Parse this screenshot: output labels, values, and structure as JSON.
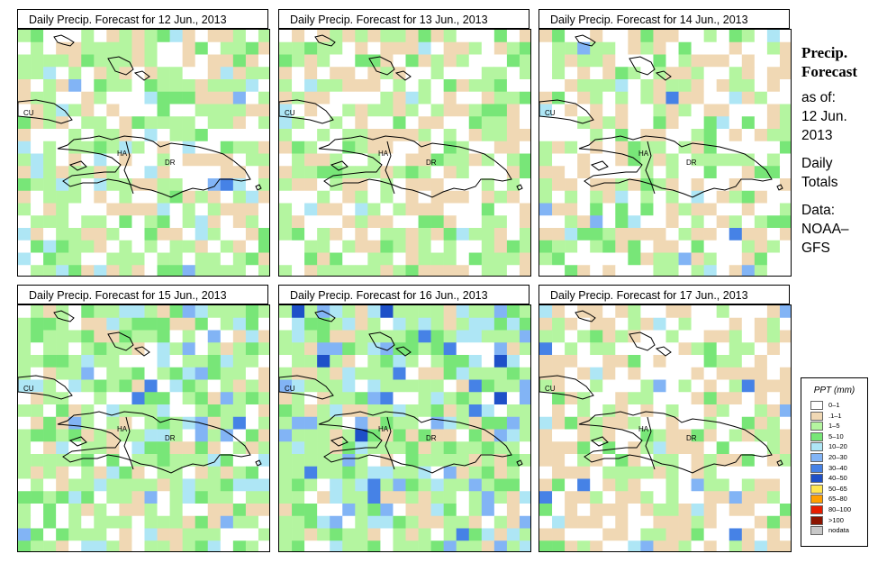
{
  "panels": [
    {
      "title": "Daily Precip. Forecast for  12 Jun., 2013"
    },
    {
      "title": "Daily Precip. Forecast for  13 Jun., 2013"
    },
    {
      "title": "Daily Precip. Forecast for  14 Jun., 2013"
    },
    {
      "title": "Daily Precip. Forecast for  15 Jun., 2013"
    },
    {
      "title": "Daily Precip. Forecast for  16 Jun., 2013"
    },
    {
      "title": "Daily Precip. Forecast for  17 Jun., 2013"
    }
  ],
  "map_labels": {
    "cuba": "CU",
    "haiti": "HA",
    "dominican_republic": "DR"
  },
  "side": {
    "title1": "Precip.",
    "title2": "Forecast",
    "asof": "as of:",
    "date1": "12 Jun.",
    "date2": "2013",
    "daily1": "Daily",
    "daily2": "Totals",
    "data1": "Data:",
    "data2": "NOAA–",
    "data3": "GFS"
  },
  "legend": {
    "title": "PPT (mm)",
    "items": [
      {
        "label": "0–1",
        "color": "#ffffff"
      },
      {
        "label": ".1–1",
        "color": "#f0d8b4"
      },
      {
        "label": "1–5",
        "color": "#b4f5a0"
      },
      {
        "label": "5–10",
        "color": "#78e678"
      },
      {
        "label": "10–20",
        "color": "#aee6f5"
      },
      {
        "label": "20–30",
        "color": "#82b4f5"
      },
      {
        "label": "30–40",
        "color": "#4682e6"
      },
      {
        "label": "40–50",
        "color": "#1e50c8"
      },
      {
        "label": "50–65",
        "color": "#ffe650"
      },
      {
        "label": "65–80",
        "color": "#ffa000"
      },
      {
        "label": "80–100",
        "color": "#e61e00"
      },
      {
        "label": ">100",
        "color": "#8c1400"
      },
      {
        "label": "nodata",
        "color": "#c8c8c8"
      }
    ]
  }
}
